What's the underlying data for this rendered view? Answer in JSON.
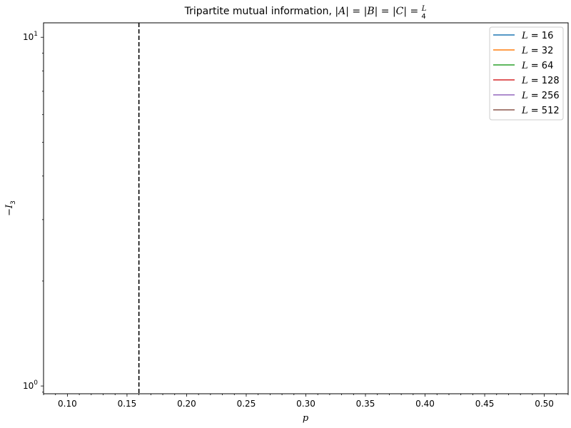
{
  "chart_data": {
    "type": "line",
    "title": "Tripartite mutual information, |A| = |B| = |C| = L/4",
    "title_parts": {
      "prefix": "Tripartite mutual information, ",
      "math": "|A| = |B| = |C| = ",
      "frac_num": "L",
      "frac_den": "4"
    },
    "xlabel": "p",
    "ylabel_sign": "−",
    "ylabel_var": "I",
    "ylabel_sub": "3",
    "xlim": [
      0.08,
      0.52
    ],
    "ylim": [
      0.95,
      11.0
    ],
    "yscale": "log",
    "x_ticks": [
      0.1,
      0.15,
      0.2,
      0.25,
      0.3,
      0.35,
      0.4,
      0.45,
      0.5
    ],
    "x_tick_labels": [
      "0.10",
      "0.15",
      "0.20",
      "0.25",
      "0.30",
      "0.35",
      "0.40",
      "0.45",
      "0.50"
    ],
    "x_minor_step": 0.01,
    "y_major_ticks": [
      {
        "value": 1,
        "base": "10",
        "exp": "0"
      },
      {
        "value": 10,
        "base": "10",
        "exp": "1"
      }
    ],
    "y_minor_ticks": [
      2,
      3,
      4,
      5,
      6,
      7,
      8,
      9
    ],
    "vline": {
      "x": 0.16,
      "style": "dashed",
      "color": "#000000"
    },
    "grid": false,
    "legend_placement": "top-right",
    "series": [
      {
        "name": "L = 16",
        "var": "L",
        "eq": " = ",
        "num": "16",
        "color": "#1f77b4",
        "x": [],
        "y": []
      },
      {
        "name": "L = 32",
        "var": "L",
        "eq": " = ",
        "num": "32",
        "color": "#ff7f0e",
        "x": [],
        "y": []
      },
      {
        "name": "L = 64",
        "var": "L",
        "eq": " = ",
        "num": "64",
        "color": "#2ca02c",
        "x": [],
        "y": []
      },
      {
        "name": "L = 128",
        "var": "L",
        "eq": " = ",
        "num": "128",
        "color": "#d62728",
        "x": [],
        "y": []
      },
      {
        "name": "L = 256",
        "var": "L",
        "eq": " = ",
        "num": "256",
        "color": "#9467bd",
        "x": [],
        "y": []
      },
      {
        "name": "L = 512",
        "var": "L",
        "eq": " = ",
        "num": "512",
        "color": "#8c564b",
        "x": [],
        "y": []
      }
    ]
  }
}
